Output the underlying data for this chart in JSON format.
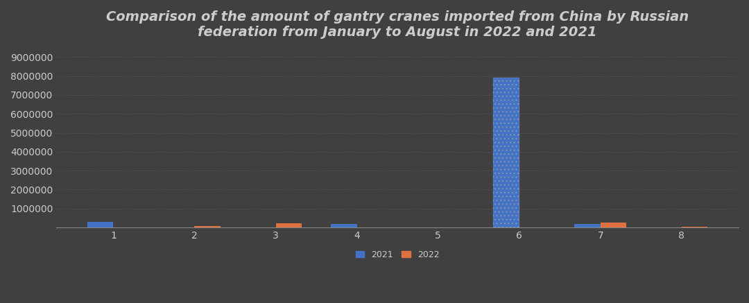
{
  "title": "Comparison of the amount of gantry cranes imported from China by Russian\nfederation from January to August in 2022 and 2021",
  "months": [
    1,
    2,
    3,
    4,
    5,
    6,
    7,
    8
  ],
  "values_2021": [
    300000,
    0,
    0,
    175000,
    0,
    7900000,
    175000,
    0
  ],
  "values_2022": [
    0,
    90000,
    230000,
    0,
    0,
    0,
    260000,
    25000
  ],
  "color_2021": "#4472C4",
  "color_2022": "#E07040",
  "background_color": "#404040",
  "text_color": "#cccccc",
  "grid_color": "#606060",
  "ylim": [
    0,
    9500000
  ],
  "yticks": [
    1000000,
    2000000,
    3000000,
    4000000,
    5000000,
    6000000,
    7000000,
    8000000,
    9000000
  ],
  "bar_width": 0.32,
  "title_fontsize": 14,
  "tick_fontsize": 10,
  "legend_fontsize": 9
}
